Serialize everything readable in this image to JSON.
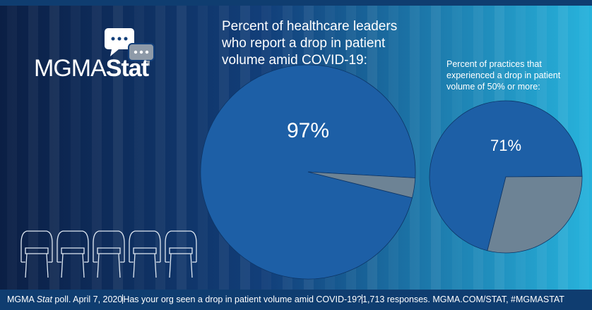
{
  "logo": {
    "prefix": "MGMA",
    "suffix": "Stat"
  },
  "chart_data": [
    {
      "type": "pie",
      "title": "Percent of healthcare leaders who report a drop in patient volume amid COVID-19:",
      "categories": [
        null,
        null
      ],
      "values": [
        97,
        3
      ],
      "value_labels": [
        "97%",
        null
      ],
      "colors": [
        "#1d5fa6",
        "#6d8395"
      ]
    },
    {
      "type": "pie",
      "title": "Percent of practices that experienced a drop in patient volume of 50% or more:",
      "categories": [
        null,
        null
      ],
      "values": [
        71,
        29
      ],
      "value_labels": [
        "71%",
        null
      ],
      "colors": [
        "#1d5fa6",
        "#6d8395"
      ]
    }
  ],
  "footer": {
    "prefix": "MGMA",
    "stat": "Stat",
    "date": "poll. April 7, 2020",
    "question": "Has your org seen a drop in patient volume amid COVID-19?",
    "source": "1,713 responses. MGMA.COM/STAT, #MGMASTAT"
  }
}
